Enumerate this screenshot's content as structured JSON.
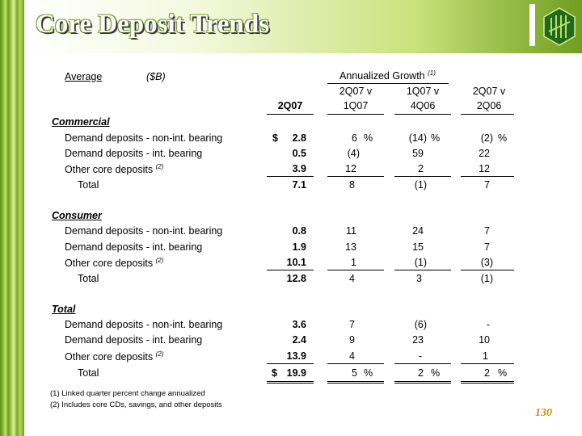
{
  "title": "Core Deposit Trends",
  "page_number": "130",
  "header": {
    "average": "Average",
    "units": "($B)",
    "annualized_growth": "Annualized Growth",
    "annualized_growth_sup": "(1)",
    "col_base": "2Q07",
    "col_g1_l1": "2Q07 v",
    "col_g1_l2": "1Q07",
    "col_g2_l1": "1Q07 v",
    "col_g2_l2": "4Q06",
    "col_g3_l1": "2Q07 v",
    "col_g3_l2": "2Q06"
  },
  "sections": [
    {
      "title": "Commercial",
      "rows": [
        {
          "label": "Demand deposits - non-int. bearing",
          "sup": "",
          "dollar": "$",
          "val": "2.8",
          "g1": "6",
          "g1p": "%",
          "g2": "(14)",
          "g2p": "%",
          "g3": "(2)",
          "g3p": "%"
        },
        {
          "label": "Demand deposits - int. bearing",
          "sup": "",
          "dollar": "",
          "val": "0.5",
          "g1": "(4)",
          "g1p": "",
          "g2": "59",
          "g2p": "",
          "g3": "22",
          "g3p": ""
        },
        {
          "label": "Other core deposits",
          "sup": "(2)",
          "dollar": "",
          "val": "3.9",
          "g1": "12",
          "g1p": "",
          "g2": "2",
          "g2p": "",
          "g3": "12",
          "g3p": ""
        },
        {
          "label": "Total",
          "sup": "",
          "dollar": "",
          "val": "7.1",
          "g1": "8",
          "g1p": "",
          "g2": "(1)",
          "g2p": "",
          "g3": "7",
          "g3p": ""
        }
      ]
    },
    {
      "title": "Consumer",
      "rows": [
        {
          "label": "Demand deposits - non-int. bearing",
          "sup": "",
          "dollar": "",
          "val": "0.8",
          "g1": "11",
          "g1p": "",
          "g2": "24",
          "g2p": "",
          "g3": "7",
          "g3p": ""
        },
        {
          "label": "Demand deposits - int. bearing",
          "sup": "",
          "dollar": "",
          "val": "1.9",
          "g1": "13",
          "g1p": "",
          "g2": "15",
          "g2p": "",
          "g3": "7",
          "g3p": ""
        },
        {
          "label": "Other core deposits",
          "sup": "(2)",
          "dollar": "",
          "val": "10.1",
          "g1": "1",
          "g1p": "",
          "g2": "(1)",
          "g2p": "",
          "g3": "(3)",
          "g3p": ""
        },
        {
          "label": "Total",
          "sup": "",
          "dollar": "",
          "val": "12.8",
          "g1": "4",
          "g1p": "",
          "g2": "3",
          "g2p": "",
          "g3": "(1)",
          "g3p": ""
        }
      ]
    },
    {
      "title": "Total",
      "rows": [
        {
          "label": "Demand deposits - non-int. bearing",
          "sup": "",
          "dollar": "",
          "val": "3.6",
          "g1": "7",
          "g1p": "",
          "g2": "(6)",
          "g2p": "",
          "g3": "-",
          "g3p": ""
        },
        {
          "label": "Demand deposits - int. bearing",
          "sup": "",
          "dollar": "",
          "val": "2.4",
          "g1": "9",
          "g1p": "",
          "g2": "23",
          "g2p": "",
          "g3": "10",
          "g3p": ""
        },
        {
          "label": "Other core deposits",
          "sup": "(2)",
          "dollar": "",
          "val": "13.9",
          "g1": "4",
          "g1p": "",
          "g2": "-",
          "g2p": "",
          "g3": "1",
          "g3p": ""
        },
        {
          "label": "Total",
          "sup": "",
          "dollar": "$",
          "val": "19.9",
          "g1": "5",
          "g1p": "%",
          "g2": "2",
          "g2p": "%",
          "g3": "2",
          "g3p": "%"
        }
      ]
    }
  ],
  "footnotes": [
    "(1)  Linked quarter percent change annualized",
    "(2)  Includes core CDs, savings, and other deposits"
  ]
}
